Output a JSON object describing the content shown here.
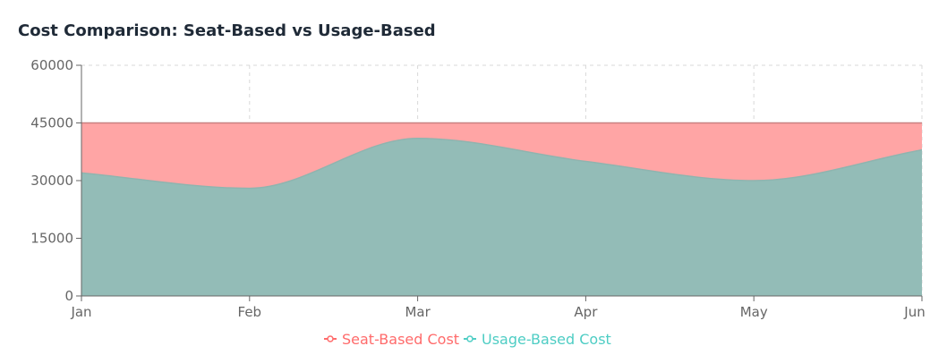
{
  "title": "Cost Comparison: Seat-Based vs Usage-Based",
  "chart_data": {
    "type": "area",
    "title": "Cost Comparison: Seat-Based vs Usage-Based",
    "categories": [
      "Jan",
      "Feb",
      "Mar",
      "Apr",
      "May",
      "Jun"
    ],
    "series": [
      {
        "name": "Seat-Based Cost",
        "values": [
          45000,
          45000,
          45000,
          45000,
          45000,
          45000
        ],
        "color": "#ff6b6b",
        "fill": "#ffa5a5"
      },
      {
        "name": "Usage-Based Cost",
        "values": [
          32000,
          28000,
          41000,
          35000,
          30000,
          38000
        ],
        "color": "#4ecdc4",
        "fill": "#93bcb7"
      }
    ],
    "ylim": [
      0,
      60000
    ],
    "yticks": [
      "0",
      "15000",
      "30000",
      "45000",
      "60000"
    ],
    "xlabel": "",
    "ylabel": "",
    "grid": true,
    "legend": "bottom-center"
  }
}
